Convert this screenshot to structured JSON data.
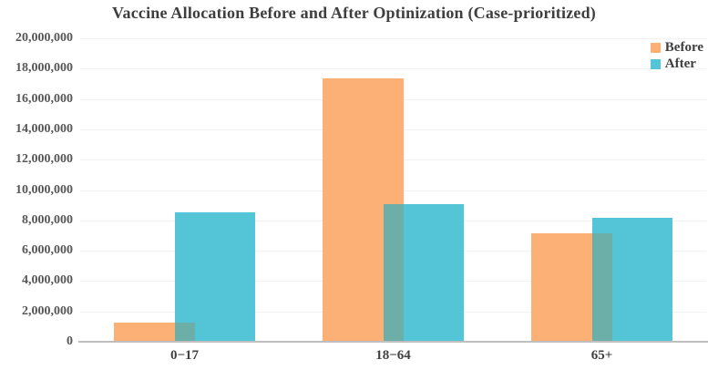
{
  "title": "Vaccine Allocation Before and After Optinization (Case-prioritized)",
  "colors": {
    "before_bar": "#FCB076",
    "after_bar": "#54C4D7",
    "overlap": "#6BAFA8",
    "gridline": "#F2F2F2",
    "axis_line": "#BFBFBF",
    "title_text": "#3E3E3E",
    "axis_text": "#575757"
  },
  "legend": {
    "position": "top-right",
    "items": [
      {
        "label": "Before",
        "color": "#FCB076"
      },
      {
        "label": "After",
        "color": "#54C4D7"
      }
    ]
  },
  "y_axis": {
    "tick_labels": [
      "0",
      "2,000,000",
      "4,000,000",
      "6,000,000",
      "8,000,000",
      "10,000,000",
      "12,000,000",
      "14,000,000",
      "16,000,000",
      "18,000,000",
      "20,000,000"
    ]
  },
  "chart_data": {
    "type": "bar",
    "title": "Vaccine Allocation Before and After Optinization (Case-prioritized)",
    "categories": [
      "0−17",
      "18−64",
      "65+"
    ],
    "series": [
      {
        "name": "Before",
        "color": "#FCB076",
        "values": [
          1250000,
          17350000,
          7150000
        ]
      },
      {
        "name": "After",
        "color": "#54C4D7",
        "values": [
          8550000,
          9050000,
          8150000
        ]
      }
    ],
    "overlap_color": "#6BAFA8",
    "xlabel": "",
    "ylabel": "",
    "ylim": [
      0,
      20000000
    ],
    "ytick_step": 2000000,
    "grid": true,
    "legend_position": "top-right",
    "bar_overlap_fraction": 0.25
  }
}
